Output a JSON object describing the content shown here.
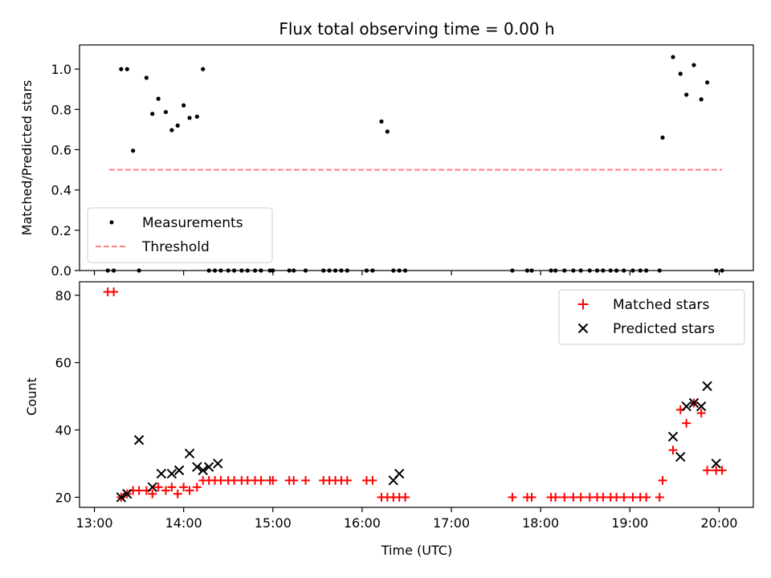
{
  "title": "Flux total observing time = 0.00 h",
  "xlabel": "Time (UTC)",
  "x_ticks": [
    "13:00",
    "14:00",
    "15:00",
    "16:00",
    "17:00",
    "18:00",
    "19:00",
    "20:00"
  ],
  "colors": {
    "measurements": "#000000",
    "threshold": "#ff7f7f",
    "matched": "#ff0000",
    "predicted": "#000000"
  },
  "chart_data": [
    {
      "type": "scatter",
      "ylabel": "Matched/Predicted stars",
      "xlim": [
        "12:50",
        "20:23"
      ],
      "ylim": [
        0,
        1.12
      ],
      "y_ticks": [
        "0.0",
        "0.2",
        "0.4",
        "0.6",
        "0.8",
        "1.0"
      ],
      "legend_position": "lower-left",
      "legend": [
        "Measurements",
        "Threshold"
      ],
      "threshold": {
        "name": "Threshold",
        "value": 0.5,
        "x_range": [
          "13:10",
          "20:02"
        ]
      },
      "measurements": {
        "name": "Measurements",
        "x": [
          "13:09",
          "13:13",
          "13:18",
          "13:22",
          "13:26",
          "13:30",
          "13:35",
          "13:39",
          "13:43",
          "13:48",
          "13:52",
          "13:56",
          "14:00",
          "14:04",
          "14:09",
          "14:13",
          "14:17",
          "14:21",
          "14:25",
          "14:30",
          "14:34",
          "14:39",
          "14:43",
          "14:48",
          "14:52",
          "14:58",
          "15:00",
          "15:11",
          "15:14",
          "15:22",
          "15:34",
          "15:38",
          "15:42",
          "15:46",
          "15:50",
          "16:03",
          "16:07",
          "16:13",
          "16:17",
          "16:21",
          "16:25",
          "16:29",
          "17:41",
          "17:51",
          "17:54",
          "18:07",
          "18:10",
          "18:16",
          "18:22",
          "18:27",
          "18:33",
          "18:38",
          "18:42",
          "18:47",
          "18:51",
          "18:56",
          "19:02",
          "19:07",
          "19:11",
          "19:20",
          "19:22",
          "19:29",
          "19:34",
          "19:38",
          "19:43",
          "19:48",
          "19:52",
          "19:58",
          "20:02"
        ],
        "y": [
          0,
          0,
          1.0,
          1.0,
          0.595,
          0,
          0.957,
          0.778,
          0.853,
          0.787,
          0.697,
          0.72,
          0.82,
          0.758,
          0.764,
          1.0,
          0,
          0,
          0,
          0,
          0,
          0,
          0,
          0,
          0,
          0,
          0,
          0,
          0,
          0,
          0,
          0,
          0,
          0,
          0,
          0,
          0,
          0.74,
          0.69,
          0,
          0,
          0,
          0,
          0,
          0,
          0,
          0,
          0,
          0,
          0,
          0,
          0,
          0,
          0,
          0,
          0,
          0,
          0,
          0,
          0,
          0.66,
          1.06,
          0.977,
          0.873,
          1.02,
          0.85,
          0.934,
          0,
          0
        ]
      }
    },
    {
      "type": "scatter",
      "ylabel": "Count",
      "xlim": [
        "12:50",
        "20:23"
      ],
      "ylim": [
        17,
        84
      ],
      "y_ticks": [
        "20",
        "40",
        "60",
        "80"
      ],
      "legend_position": "upper-right",
      "legend": [
        "Matched stars",
        "Predicted stars"
      ],
      "matched": {
        "name": "Matched stars",
        "x": [
          "13:09",
          "13:13",
          "13:18",
          "13:22",
          "13:26",
          "13:30",
          "13:35",
          "13:39",
          "13:43",
          "13:48",
          "13:52",
          "13:56",
          "14:00",
          "14:04",
          "14:09",
          "14:13",
          "14:17",
          "14:21",
          "14:25",
          "14:30",
          "14:34",
          "14:39",
          "14:43",
          "14:48",
          "14:52",
          "14:58",
          "15:00",
          "15:11",
          "15:14",
          "15:22",
          "15:34",
          "15:38",
          "15:42",
          "15:46",
          "15:50",
          "16:03",
          "16:07",
          "16:13",
          "16:17",
          "16:21",
          "16:25",
          "16:29",
          "17:41",
          "17:51",
          "17:54",
          "18:07",
          "18:10",
          "18:16",
          "18:22",
          "18:27",
          "18:33",
          "18:38",
          "18:42",
          "18:47",
          "18:51",
          "18:56",
          "19:02",
          "19:07",
          "19:11",
          "19:20",
          "19:22",
          "19:29",
          "19:34",
          "19:38",
          "19:43",
          "19:48",
          "19:52",
          "19:58",
          "20:02"
        ],
        "y": [
          81,
          81,
          20,
          21,
          22,
          22,
          22,
          21,
          23,
          22,
          23,
          21,
          23,
          22,
          23,
          25,
          25,
          25,
          25,
          25,
          25,
          25,
          25,
          25,
          25,
          25,
          25,
          25,
          25,
          25,
          25,
          25,
          25,
          25,
          25,
          25,
          25,
          20,
          20,
          20,
          20,
          20,
          20,
          20,
          20,
          20,
          20,
          20,
          20,
          20,
          20,
          20,
          20,
          20,
          20,
          20,
          20,
          20,
          20,
          20,
          25,
          34,
          46,
          42,
          48,
          45,
          28,
          28,
          28
        ]
      },
      "predicted": {
        "name": "Predicted stars",
        "x": [
          "13:18",
          "13:22",
          "13:30",
          "13:39",
          "13:45",
          "13:52",
          "13:57",
          "14:04",
          "14:09",
          "14:13",
          "14:17",
          "14:23",
          "16:21",
          "16:25",
          "19:29",
          "19:34",
          "19:38",
          "19:43",
          "19:48",
          "19:52",
          "19:58"
        ],
        "y": [
          20,
          21,
          37,
          23,
          27,
          27,
          28,
          33,
          29,
          28,
          29,
          30,
          25,
          27,
          38,
          32,
          47,
          48,
          47,
          53,
          30
        ]
      }
    }
  ]
}
